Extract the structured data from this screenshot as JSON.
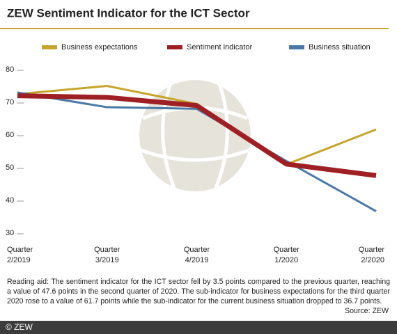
{
  "chart_data": {
    "type": "line",
    "title": "ZEW Sentiment Indicator for the ICT Sector",
    "categories": [
      "Quarter 2/2019",
      "Quarter 3/2019",
      "Quarter 4/2019",
      "Quarter 1/2020",
      "Quarter 2/2020"
    ],
    "series": [
      {
        "name": "Business expectations",
        "color": "#c6a52d",
        "values": [
          72.5,
          75,
          69.5,
          51,
          61.7
        ]
      },
      {
        "name": "Sentiment indicator",
        "color": "#9e1f24",
        "values": [
          72,
          71.5,
          69,
          51.1,
          47.6
        ]
      },
      {
        "name": "Business situation",
        "color": "#4a79a7",
        "values": [
          73,
          68.5,
          68,
          52,
          36.7
        ]
      }
    ],
    "ylim": [
      30,
      80
    ],
    "yticks": [
      30,
      40,
      50,
      60,
      70,
      80
    ],
    "note": "Reading aid: The sentiment indicator for the ICT sector fell by 3.5 points compared to the previous quarter, reaching a value of 47.6 points in the second quarter of 2020. The sub-indicator for business expectations for the third quarter 2020 rose to a value of 61.7 points while the sub-indicator for the current business situation dropped to 36.7 points.",
    "source": "Source: ZEW",
    "footer": "© ZEW"
  }
}
